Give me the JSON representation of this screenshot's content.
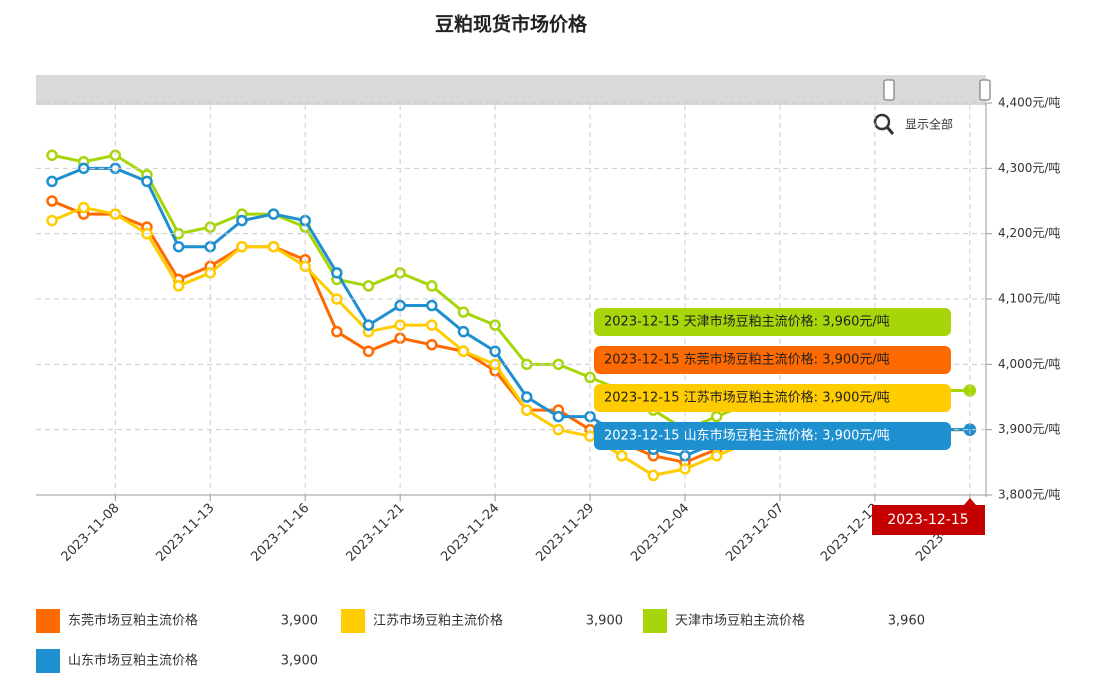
{
  "chart_data": {
    "type": "line",
    "title": "豆粕现货市场价格",
    "categories": [
      null,
      null,
      "2023-11-08",
      null,
      null,
      "2023-11-13",
      null,
      null,
      "2023-11-16",
      null,
      null,
      "2023-11-21",
      null,
      null,
      "2023-11-24",
      null,
      null,
      "2023-11-29",
      null,
      null,
      "2023-12-04",
      null,
      null,
      "2023-12-07",
      null,
      null,
      "2023-12-12",
      null,
      null,
      "2023-12-15"
    ],
    "series": [
      {
        "name": "东莞市场豆粕主流价格",
        "color": "#ff6a00",
        "values": [
          4250,
          4230,
          4230,
          4210,
          4130,
          4150,
          4180,
          4180,
          4160,
          4050,
          4020,
          4040,
          4030,
          4020,
          3990,
          3930,
          3930,
          3900,
          3880,
          3860,
          3850,
          3870,
          3890,
          3900,
          3900,
          3900,
          3900,
          3900,
          3900,
          3900
        ],
        "legend_value": "3,900",
        "tooltip": "2023-12-15 东莞市场豆粕主流价格: 3,900元/吨"
      },
      {
        "name": "江苏市场豆粕主流价格",
        "color": "#ffcc00",
        "values": [
          4220,
          4240,
          4230,
          4200,
          4120,
          4140,
          4180,
          4180,
          4150,
          4100,
          4050,
          4060,
          4060,
          4020,
          4000,
          3930,
          3900,
          3890,
          3860,
          3830,
          3840,
          3860,
          3880,
          3900,
          3900,
          3900,
          3900,
          3900,
          3900,
          3900
        ],
        "legend_value": "3,900",
        "tooltip": "2023-12-15 江苏市场豆粕主流价格: 3,900元/吨"
      },
      {
        "name": "天津市场豆粕主流价格",
        "color": "#a6d609",
        "values": [
          4320,
          4310,
          4320,
          4290,
          4200,
          4210,
          4230,
          4230,
          4210,
          4130,
          4120,
          4140,
          4120,
          4080,
          4060,
          4000,
          4000,
          3980,
          3960,
          3930,
          3900,
          3920,
          3940,
          3960,
          3960,
          3960,
          3960,
          3960,
          3960,
          3960
        ],
        "legend_value": "3,960",
        "tooltip": "2023-12-15 天津市场豆粕主流价格: 3,960元/吨"
      },
      {
        "name": "山东市场豆粕主流价格",
        "color": "#1e8fcf",
        "values": [
          4280,
          4300,
          4300,
          4280,
          4180,
          4180,
          4220,
          4230,
          4220,
          4140,
          4060,
          4090,
          4090,
          4050,
          4020,
          3950,
          3920,
          3920,
          3890,
          3870,
          3860,
          3880,
          3890,
          3900,
          3900,
          3900,
          3900,
          3900,
          3900,
          3900
        ],
        "legend_value": "3,900",
        "tooltip": "2023-12-15 山东市场豆粕主流价格: 3,900元/吨"
      }
    ],
    "tooltip_order": [
      2,
      0,
      1,
      3
    ],
    "ylim": [
      3800,
      4400
    ],
    "yticks": [
      {
        "value": 3800,
        "label": "3,800元/吨"
      },
      {
        "value": 3900,
        "label": "3,900元/吨"
      },
      {
        "value": 4000,
        "label": "4,000元/吨"
      },
      {
        "value": 4100,
        "label": "4,100元/吨"
      },
      {
        "value": 4200,
        "label": "4,200元/吨"
      },
      {
        "value": 4300,
        "label": "4,300元/吨"
      },
      {
        "value": 4400,
        "label": "4,400元/吨"
      }
    ],
    "grid": true,
    "crosshair_label": "2023-12-15",
    "reset_zoom": "显示全部"
  }
}
